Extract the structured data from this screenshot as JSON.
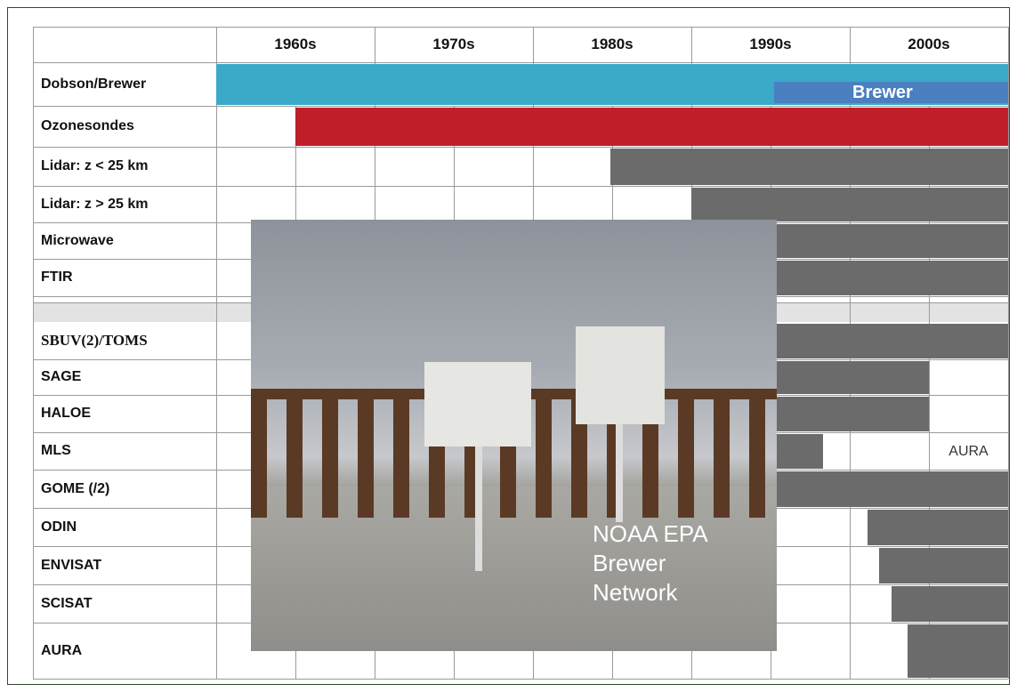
{
  "header": {
    "decades": [
      "1960s",
      "1970s",
      "1980s",
      "1990s",
      "2000s"
    ]
  },
  "rows": [
    "Dobson/Brewer",
    "Ozonesondes",
    "Lidar: z < 25 km",
    "Lidar: z > 25 km",
    "Microwave",
    "FTIR",
    "SBUV(2)/TOMS",
    "SAGE",
    "HALOE",
    "MLS",
    "GOME (/2)",
    "ODIN",
    "ENVISAT",
    "SCISAT",
    "AURA"
  ],
  "annotations": {
    "brewer": "Brewer",
    "mls_note": "AURA"
  },
  "photo": {
    "caption": [
      "NOAA EPA",
      "Brewer",
      "Network"
    ]
  }
}
